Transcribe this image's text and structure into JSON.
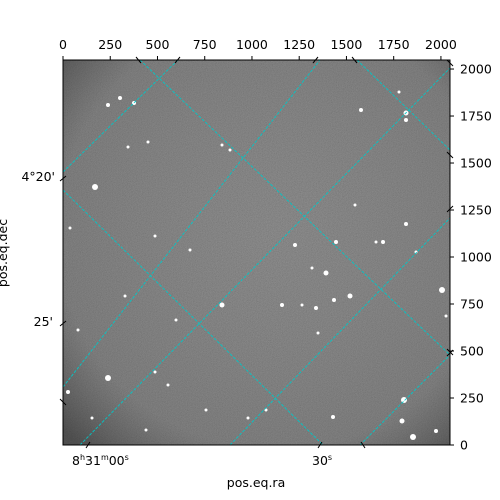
{
  "chart_data": {
    "type": "image",
    "xlabel": "pos.eq.ra",
    "ylabel": "pos.eq.dec",
    "x_pixel_ticks": {
      "values": [
        0,
        250,
        500,
        750,
        1000,
        1250,
        1500,
        1750,
        2000
      ],
      "labels": [
        "0",
        "250",
        "500",
        "750",
        "1000",
        "1250",
        "1500",
        "1750",
        "2000"
      ]
    },
    "y_pixel_ticks": {
      "values": [
        0,
        250,
        500,
        750,
        1000,
        1250,
        1500,
        1750,
        2000
      ],
      "labels": [
        "0",
        "250",
        "500",
        "750",
        "1000",
        "1250",
        "1500",
        "1750",
        "2000"
      ]
    },
    "xlim": [
      0,
      2048
    ],
    "ylim": [
      0,
      2048
    ],
    "ra_labels": [
      {
        "text": "8h31m00s",
        "h": "8",
        "hs": "h",
        "m": "31",
        "ms": "m",
        "s": "00",
        "ss": "s"
      },
      {
        "text": "30s",
        "h": "",
        "hs": "",
        "m": "",
        "ms": "",
        "s": "30",
        "ss": "s"
      }
    ],
    "dec_labels": [
      "4°20'",
      "25'"
    ],
    "grid": true,
    "grid_color": "#00c8c8",
    "image_colormap": "gray",
    "image_background": "#6e6e6e"
  }
}
